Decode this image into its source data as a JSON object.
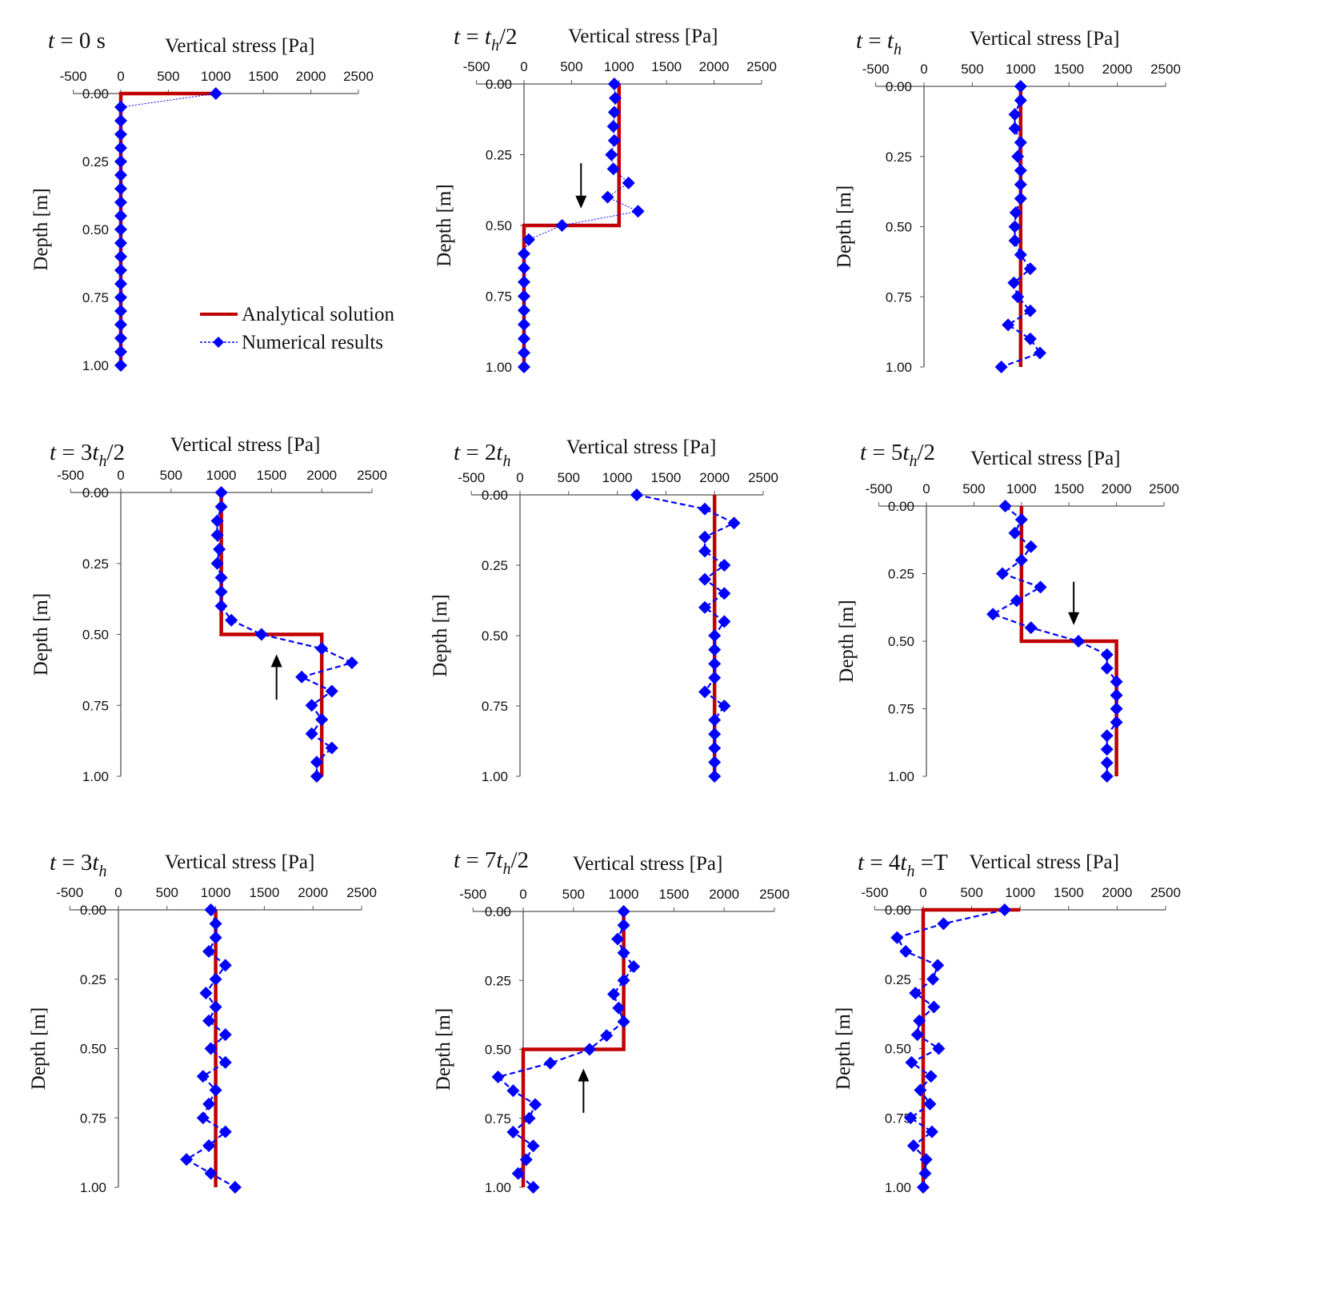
{
  "chart_data": {
    "type": "line",
    "layout": "3x3 grid of depth profiles",
    "legend": {
      "position": "inside first panel, bottom-right",
      "entries": [
        "Analytical solution",
        "Numerical results"
      ]
    },
    "colors": {
      "analytical": "#c00000",
      "numerical": "#0000ff",
      "axis": "#555555"
    },
    "shared": {
      "xlabel": "Vertical stress [Pa]",
      "ylabel": "Depth [m]",
      "xlim": [
        -500,
        2500
      ],
      "xticks": [
        "-500",
        "0",
        "500",
        "1000",
        "1500",
        "2000",
        "2500"
      ],
      "ylim": [
        0,
        1
      ],
      "yreversed": true,
      "yticks": [
        "0.00",
        "0.25",
        "0.50",
        "0.75",
        "1.00"
      ],
      "x_axis_position": "top",
      "depth": [
        0,
        0.05,
        0.1,
        0.15,
        0.2,
        0.25,
        0.3,
        0.35,
        0.4,
        0.45,
        0.5,
        0.55,
        0.6,
        0.65,
        0.7,
        0.75,
        0.8,
        0.85,
        0.9,
        0.95,
        1.0
      ]
    },
    "panels": [
      {
        "title": [
          {
            "t": "t",
            "i": 1
          },
          {
            "t": " = 0 s"
          }
        ],
        "analytical": [
          [
            1000,
            0
          ],
          [
            0,
            0
          ],
          [
            0,
            1
          ]
        ],
        "numerical": [
          1000,
          0,
          0,
          0,
          0,
          0,
          0,
          0,
          0,
          0,
          0,
          0,
          0,
          0,
          0,
          0,
          0,
          0,
          0,
          0,
          0
        ],
        "numerical_style": "dotted"
      },
      {
        "title": [
          {
            "t": "t",
            "i": 1
          },
          {
            "t": " = "
          },
          {
            "t": "t",
            "i": 1
          },
          {
            "t": "h",
            "i": 1,
            "sub": 1
          },
          {
            "t": "/2"
          }
        ],
        "analytical": [
          [
            1000,
            0
          ],
          [
            1000,
            0.5
          ],
          [
            0,
            0.5
          ],
          [
            0,
            1
          ]
        ],
        "numerical": [
          950,
          960,
          950,
          940,
          950,
          920,
          940,
          1100,
          880,
          1200,
          400,
          50,
          0,
          0,
          0,
          0,
          0,
          0,
          0,
          0,
          0
        ],
        "numerical_style": "dotted",
        "arrow": {
          "direction": "down",
          "x": 600,
          "from": 0.28,
          "to": 0.44
        }
      },
      {
        "title": [
          {
            "t": "t",
            "i": 1
          },
          {
            "t": " = "
          },
          {
            "t": "t",
            "i": 1
          },
          {
            "t": "h",
            "i": 1,
            "sub": 1
          }
        ],
        "analytical": [
          [
            1000,
            0
          ],
          [
            1000,
            1
          ]
        ],
        "numerical": [
          1000,
          1000,
          940,
          940,
          1000,
          970,
          1000,
          1000,
          1000,
          950,
          940,
          940,
          1000,
          1100,
          930,
          970,
          1100,
          870,
          1100,
          1200,
          800
        ],
        "numerical_style": "dashed"
      },
      {
        "title": [
          {
            "t": "t",
            "i": 1
          },
          {
            "t": " = 3"
          },
          {
            "t": "t",
            "i": 1
          },
          {
            "t": "h",
            "i": 1,
            "sub": 1
          },
          {
            "t": "/2"
          }
        ],
        "analytical": [
          [
            1000,
            0
          ],
          [
            1000,
            0.5
          ],
          [
            2000,
            0.5
          ],
          [
            2000,
            1
          ]
        ],
        "numerical": [
          1000,
          1000,
          960,
          960,
          980,
          960,
          1000,
          1000,
          1000,
          1100,
          1400,
          2000,
          2300,
          1800,
          2100,
          1900,
          2000,
          1900,
          2100,
          1950,
          1950
        ],
        "numerical_style": "dashed",
        "arrow": {
          "direction": "up",
          "x": 1550,
          "from": 0.73,
          "to": 0.57
        }
      },
      {
        "title": [
          {
            "t": "t",
            "i": 1
          },
          {
            "t": " = 2"
          },
          {
            "t": "t",
            "i": 1
          },
          {
            "t": "h",
            "i": 1,
            "sub": 1
          }
        ],
        "analytical": [
          [
            2000,
            0
          ],
          [
            2000,
            1
          ]
        ],
        "numerical": [
          1200,
          1900,
          2200,
          1900,
          1900,
          2100,
          1900,
          2100,
          1900,
          2100,
          2000,
          2000,
          2000,
          2000,
          1900,
          2100,
          2000,
          2000,
          2000,
          2000,
          2000
        ],
        "numerical_style": "dashed"
      },
      {
        "title": [
          {
            "t": "t",
            "i": 1
          },
          {
            "t": " = 5"
          },
          {
            "t": "t",
            "i": 1
          },
          {
            "t": "h",
            "i": 1,
            "sub": 1
          },
          {
            "t": "/2"
          }
        ],
        "analytical": [
          [
            1000,
            0
          ],
          [
            1000,
            0.5
          ],
          [
            2000,
            0.5
          ],
          [
            2000,
            1
          ]
        ],
        "numerical": [
          830,
          1000,
          930,
          1100,
          1000,
          800,
          1200,
          950,
          700,
          1100,
          1600,
          1900,
          1900,
          2000,
          2000,
          2000,
          2000,
          1900,
          1900,
          1900,
          1900
        ],
        "numerical_style": "dashed",
        "arrow": {
          "direction": "down",
          "x": 1550,
          "from": 0.28,
          "to": 0.44
        }
      },
      {
        "title": [
          {
            "t": "t",
            "i": 1
          },
          {
            "t": " = 3"
          },
          {
            "t": "t",
            "i": 1
          },
          {
            "t": "h",
            "i": 1,
            "sub": 1
          }
        ],
        "analytical": [
          [
            1000,
            0
          ],
          [
            1000,
            1
          ]
        ],
        "numerical": [
          950,
          1000,
          1000,
          930,
          1100,
          1000,
          900,
          1000,
          930,
          1100,
          950,
          1100,
          870,
          1000,
          930,
          870,
          1100,
          930,
          700,
          950,
          1200
        ],
        "numerical_style": "dashed"
      },
      {
        "title": [
          {
            "t": "t",
            "i": 1
          },
          {
            "t": " = 7"
          },
          {
            "t": "t",
            "i": 1
          },
          {
            "t": "h",
            "i": 1,
            "sub": 1
          },
          {
            "t": "/2"
          }
        ],
        "analytical": [
          [
            1000,
            0
          ],
          [
            1000,
            0.5
          ],
          [
            0,
            0.5
          ],
          [
            0,
            1
          ]
        ],
        "numerical": [
          1000,
          1000,
          940,
          1000,
          1100,
          1000,
          900,
          950,
          1000,
          830,
          660,
          270,
          -250,
          -100,
          120,
          60,
          -100,
          100,
          30,
          -50,
          100
        ],
        "numerical_style": "dashed",
        "arrow": {
          "direction": "up",
          "x": 600,
          "from": 0.73,
          "to": 0.57
        }
      },
      {
        "title": [
          {
            "t": "t",
            "i": 1
          },
          {
            "t": " = 4"
          },
          {
            "t": "t",
            "i": 1
          },
          {
            "t": "h",
            "i": 1,
            "sub": 1
          },
          {
            "t": " =T"
          }
        ],
        "analytical": [
          [
            1000,
            0
          ],
          [
            0,
            0
          ],
          [
            0,
            1
          ]
        ],
        "numerical": [
          840,
          210,
          -270,
          -180,
          150,
          100,
          -80,
          110,
          -40,
          -60,
          160,
          -120,
          80,
          -30,
          70,
          -130,
          90,
          -100,
          30,
          20,
          0
        ],
        "numerical_style": "dashed"
      }
    ]
  }
}
